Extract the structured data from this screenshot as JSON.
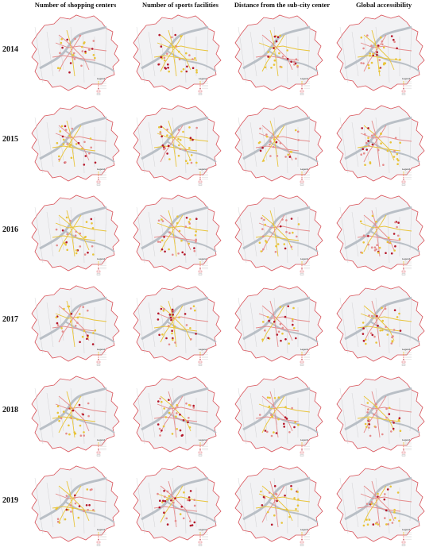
{
  "columns": [
    "Number of shopping centers",
    "Number of sports facilities",
    "Distance from the sub-city center",
    "Global accessibility"
  ],
  "years": [
    "2014",
    "2015",
    "2016",
    "2017",
    "2018",
    "2019"
  ],
  "legend_title": "Legend",
  "colors": {
    "boundary": "#d9535a",
    "region_fill": "#f2f2f4",
    "district_lines": "#c9c9cc",
    "river": "#b9bfc6",
    "low": "#e8c43a",
    "mid": "#e58c8c",
    "high": "#b5172a"
  }
}
